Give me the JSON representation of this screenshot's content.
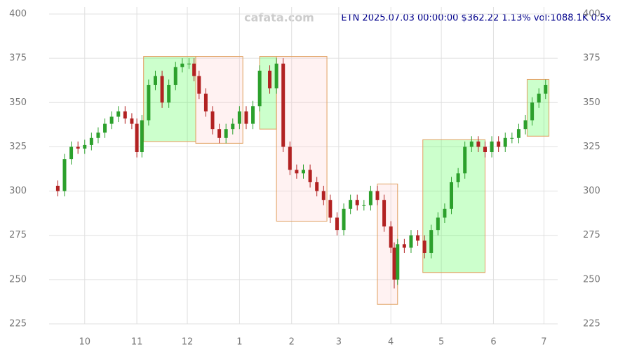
{
  "chart_data": {
    "type": "candlestick",
    "title": "ETN 2025.07.03 00:00:00 $362.22 1.13% vol:1088.1K 0.5x",
    "watermark": "cafata.com",
    "x": [
      -16,
      -12,
      -8,
      -4,
      0,
      4,
      8,
      12,
      16,
      20,
      24,
      28,
      31,
      34,
      38,
      42,
      46,
      50,
      54,
      58,
      62,
      65,
      68,
      72,
      76,
      80,
      84,
      88,
      92,
      96,
      100,
      104,
      110,
      114,
      118,
      122,
      126,
      130,
      134,
      138,
      142,
      146,
      150,
      154,
      158,
      162,
      166,
      170,
      174,
      178,
      182,
      184,
      186,
      190,
      194,
      198,
      202,
      206,
      210,
      214,
      218,
      222,
      226,
      230,
      234,
      238,
      242,
      246,
      250,
      254,
      258,
      262,
      266,
      270,
      274
    ],
    "open": [
      303,
      300,
      318,
      325,
      324,
      326,
      330,
      333,
      338,
      342,
      345,
      341,
      338,
      322,
      340,
      360,
      365,
      350,
      360,
      370,
      372,
      372,
      365,
      355,
      345,
      335,
      330,
      335,
      338,
      345,
      338,
      348,
      368,
      358,
      372,
      325,
      312,
      310,
      312,
      305,
      300,
      295,
      285,
      278,
      290,
      295,
      292,
      292,
      300,
      295,
      280,
      268,
      250,
      270,
      268,
      275,
      272,
      265,
      278,
      285,
      290,
      305,
      310,
      325,
      328,
      325,
      322,
      328,
      325,
      330,
      330,
      335,
      340,
      350,
      355
    ],
    "high": [
      306,
      321,
      328,
      328,
      329,
      333,
      336,
      341,
      345,
      348,
      348,
      344,
      341,
      343,
      363,
      368,
      368,
      363,
      373,
      375,
      375,
      375,
      368,
      358,
      348,
      338,
      338,
      341,
      348,
      348,
      351,
      371,
      371,
      375,
      375,
      328,
      315,
      315,
      315,
      308,
      303,
      298,
      288,
      293,
      298,
      298,
      295,
      303,
      303,
      298,
      283,
      271,
      273,
      273,
      278,
      278,
      275,
      281,
      288,
      293,
      308,
      313,
      328,
      331,
      331,
      328,
      331,
      331,
      333,
      333,
      338,
      343,
      353,
      358,
      363
    ],
    "low": [
      297,
      297,
      315,
      321,
      321,
      323,
      327,
      330,
      335,
      339,
      338,
      335,
      319,
      319,
      337,
      357,
      347,
      347,
      357,
      367,
      369,
      362,
      352,
      342,
      332,
      327,
      327,
      332,
      335,
      335,
      335,
      345,
      355,
      355,
      322,
      309,
      307,
      307,
      302,
      297,
      292,
      282,
      275,
      275,
      287,
      289,
      289,
      289,
      292,
      277,
      265,
      245,
      247,
      265,
      265,
      269,
      262,
      262,
      275,
      282,
      287,
      302,
      307,
      322,
      322,
      319,
      319,
      322,
      322,
      327,
      327,
      332,
      337,
      347,
      352
    ],
    "close": [
      300,
      318,
      325,
      324,
      326,
      330,
      333,
      338,
      342,
      345,
      341,
      338,
      322,
      340,
      360,
      365,
      350,
      360,
      370,
      372,
      372,
      365,
      355,
      345,
      335,
      330,
      335,
      338,
      345,
      338,
      348,
      368,
      358,
      372,
      325,
      312,
      310,
      312,
      305,
      300,
      295,
      285,
      278,
      290,
      295,
      292,
      292,
      300,
      295,
      280,
      268,
      250,
      270,
      268,
      275,
      272,
      265,
      278,
      285,
      290,
      305,
      310,
      325,
      328,
      325,
      322,
      328,
      325,
      330,
      330,
      335,
      340,
      350,
      355,
      360
    ],
    "up_color": "#2ca02c",
    "down_color": "#b22222",
    "zones": [
      {
        "x": [
          35,
          66
        ],
        "y": [
          328,
          376
        ],
        "color": "#33ff33"
      },
      {
        "x": [
          66,
          94
        ],
        "y": [
          327,
          376
        ],
        "color": "#ffcccc"
      },
      {
        "x": [
          104,
          114
        ],
        "y": [
          335,
          376
        ],
        "color": "#33ff33"
      },
      {
        "x": [
          114,
          144
        ],
        "y": [
          283,
          376
        ],
        "color": "#ffcccc"
      },
      {
        "x": [
          174,
          186
        ],
        "y": [
          236,
          304
        ],
        "color": "#ffcccc"
      },
      {
        "x": [
          201,
          238
        ],
        "y": [
          254,
          329
        ],
        "color": "#33ff33"
      },
      {
        "x": [
          263,
          276
        ],
        "y": [
          331,
          363
        ],
        "color": "#33ff33"
      }
    ],
    "xlim": [
      -17,
      277
    ],
    "xticks": [
      {
        "value": 0,
        "label": "10"
      },
      {
        "value": 31,
        "label": "11"
      },
      {
        "value": 61,
        "label": "12"
      },
      {
        "value": 92,
        "label": "1"
      },
      {
        "value": 123,
        "label": "2"
      },
      {
        "value": 151,
        "label": "3"
      },
      {
        "value": 182,
        "label": "4"
      },
      {
        "value": 212,
        "label": "5"
      },
      {
        "value": 243,
        "label": "6"
      },
      {
        "value": 273,
        "label": "7"
      }
    ],
    "ylim": [
      225,
      400
    ],
    "yticks": [
      225,
      250,
      275,
      300,
      325,
      350,
      375,
      400
    ],
    "grid": true
  }
}
